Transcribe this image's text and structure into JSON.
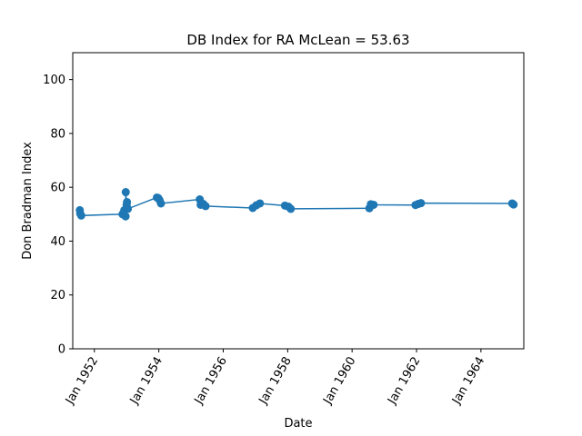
{
  "chart_data": {
    "type": "line",
    "title": "DB Index for RA McLean = 53.63",
    "xlabel": "Date",
    "ylabel": "Don Bradman Index",
    "ylim": [
      0,
      110
    ],
    "xlim": [
      "1951-05-01",
      "1965-05-01"
    ],
    "y_ticks": [
      0,
      20,
      40,
      60,
      80,
      100
    ],
    "x_ticks": [
      {
        "date": "1952-01-01",
        "label": "Jan 1952"
      },
      {
        "date": "1954-01-01",
        "label": "Jan 1954"
      },
      {
        "date": "1956-01-01",
        "label": "Jan 1956"
      },
      {
        "date": "1958-01-01",
        "label": "Jan 1958"
      },
      {
        "date": "1960-01-01",
        "label": "Jan 1960"
      },
      {
        "date": "1962-01-01",
        "label": "Jan 1962"
      },
      {
        "date": "1964-01-01",
        "label": "Jan 1964"
      }
    ],
    "grid": false,
    "color": "#1f77b4",
    "points": [
      {
        "x": "1951-07-20",
        "y": 51.5
      },
      {
        "x": "1951-07-25",
        "y": 50.2
      },
      {
        "x": "1951-08-05",
        "y": 49.5
      },
      {
        "x": "1952-11-15",
        "y": 50.0
      },
      {
        "x": "1952-12-05",
        "y": 51.5
      },
      {
        "x": "1952-12-20",
        "y": 49.2
      },
      {
        "x": "1952-12-22",
        "y": 58.2
      },
      {
        "x": "1953-01-01",
        "y": 53.5
      },
      {
        "x": "1953-01-05",
        "y": 54.5
      },
      {
        "x": "1953-01-15",
        "y": 52.0
      },
      {
        "x": "1953-12-10",
        "y": 56.2
      },
      {
        "x": "1953-12-25",
        "y": 56.0
      },
      {
        "x": "1954-01-10",
        "y": 55.2
      },
      {
        "x": "1954-01-25",
        "y": 54.0
      },
      {
        "x": "1955-04-10",
        "y": 55.5
      },
      {
        "x": "1955-04-20",
        "y": 53.5
      },
      {
        "x": "1955-05-20",
        "y": 53.8
      },
      {
        "x": "1955-06-15",
        "y": 53.0
      },
      {
        "x": "1956-12-01",
        "y": 52.3
      },
      {
        "x": "1957-01-10",
        "y": 53.3
      },
      {
        "x": "1957-02-20",
        "y": 54.0
      },
      {
        "x": "1957-12-01",
        "y": 53.2
      },
      {
        "x": "1958-01-10",
        "y": 52.8
      },
      {
        "x": "1958-02-05",
        "y": 52.0
      },
      {
        "x": "1960-07-15",
        "y": 52.2
      },
      {
        "x": "1960-08-01",
        "y": 53.7
      },
      {
        "x": "1960-09-01",
        "y": 53.5
      },
      {
        "x": "1961-12-20",
        "y": 53.4
      },
      {
        "x": "1962-01-20",
        "y": 53.8
      },
      {
        "x": "1962-02-20",
        "y": 54.1
      },
      {
        "x": "1964-12-20",
        "y": 54.0
      },
      {
        "x": "1965-01-05",
        "y": 53.6
      }
    ]
  }
}
